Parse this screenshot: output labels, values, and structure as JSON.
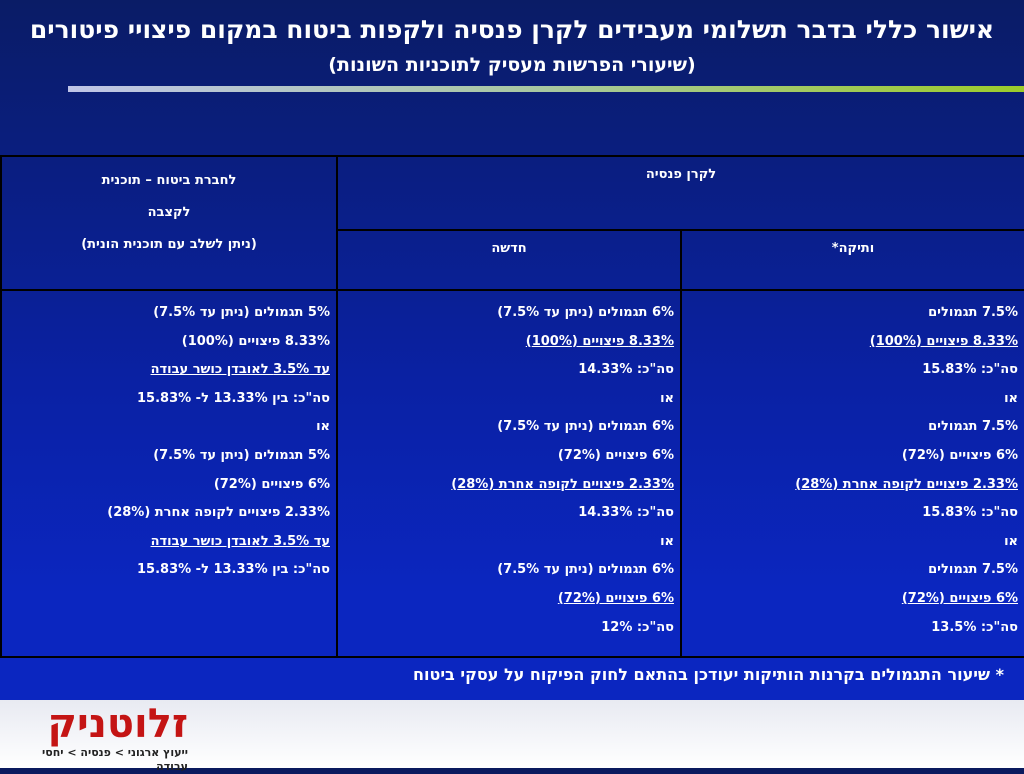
{
  "title": "אישור כללי בדבר תשלומי מעבידים לקרן פנסיה ולקפות ביטוח במקום פיצויי פיטורים",
  "subtitle": "(שיעורי הפרשות מעסיק לתוכניות השונות)",
  "table": {
    "insurance_header_lines": [
      "לחברת ביטוח – תוכנית",
      "לקצבה",
      "(ניתן לשלב עם תוכנית הונית)"
    ],
    "pension_header": "לקרן פנסיה",
    "new_header": "חדשה",
    "old_header": "ותיקה*",
    "old_column": [
      {
        "text": "7.5% תגמולים",
        "underline": false
      },
      {
        "text": "8.33% פיצויים (100%)",
        "underline": true
      },
      {
        "text": "סה\"כ:  15.83%",
        "underline": false
      },
      {
        "text": "או",
        "underline": false
      },
      {
        "text": "7.5% תגמולים",
        "underline": false
      },
      {
        "text": "6%      פיצויים (72%)",
        "underline": false
      },
      {
        "text": "2.33% פיצויים לקופה אחרת (28%)",
        "underline": true
      },
      {
        "text": "סה\"כ:  15.83%",
        "underline": false
      },
      {
        "text": "או",
        "underline": false
      },
      {
        "text": "7.5% תגמולים",
        "underline": false
      },
      {
        "text": "6%      פיצויים (72%)",
        "underline": true
      },
      {
        "text": "סה\"כ:  13.5%",
        "underline": false
      }
    ],
    "new_column": [
      {
        "text": "6% תגמולים (ניתן עד 7.5%)",
        "underline": false
      },
      {
        "text": "8.33% פיצויים (100%)",
        "underline": true
      },
      {
        "text": "סה\"כ:  14.33%",
        "underline": false
      },
      {
        "text": "או",
        "underline": false
      },
      {
        "text": "6%      תגמולים (ניתן עד 7.5%)",
        "underline": false
      },
      {
        "text": "6%      פיצויים (72%)",
        "underline": false
      },
      {
        "text": "2.33% פיצויים לקופה אחרת (28%)",
        "underline": true
      },
      {
        "text": "סה\"כ:  14.33%",
        "underline": false
      },
      {
        "text": "או",
        "underline": false
      },
      {
        "text": "6%      תגמולים (ניתן עד 7.5%)",
        "underline": false
      },
      {
        "text": "6%      פיצויים (72%)",
        "underline": true
      },
      {
        "text": "סה\"כ:  12%",
        "underline": false
      }
    ],
    "insurance_column": [
      {
        "text": "5% תגמולים (ניתן עד 7.5%)",
        "underline": false
      },
      {
        "text": "8.33% פיצויים (100%)",
        "underline": false
      },
      {
        "text": "עד  3.5% לאובדן כושר עבודה",
        "underline": true
      },
      {
        "text": "סה\"כ:  בין 13.33% ל- 15.83%",
        "underline": false
      },
      {
        "text": "או",
        "underline": false
      },
      {
        "text": "5%      תגמולים (ניתן עד 7.5%)",
        "underline": false
      },
      {
        "text": "6%      פיצויים (72%)",
        "underline": false
      },
      {
        "text": "2.33% פיצויים לקופה אחרת (28%)",
        "underline": false
      },
      {
        "text": "עד  3.5% לאובדן כושר עבודה",
        "underline": true
      },
      {
        "text": "סה\"כ:  בין 13.33% ל- 15.83%",
        "underline": false
      }
    ]
  },
  "footnote": "*  שיעור התגמולים בקרנות הותיקות יעודכן בהתאם לחוק הפיקוח על עסקי ביטוח",
  "logo": {
    "name": "זלוטניק",
    "tagline": "ייעוץ ארגוני > פנסיה > יחסי עבודה"
  },
  "colors": {
    "background": "#0b22ae",
    "logo_red": "#c41414",
    "divider_green": "#9ccc2a"
  }
}
